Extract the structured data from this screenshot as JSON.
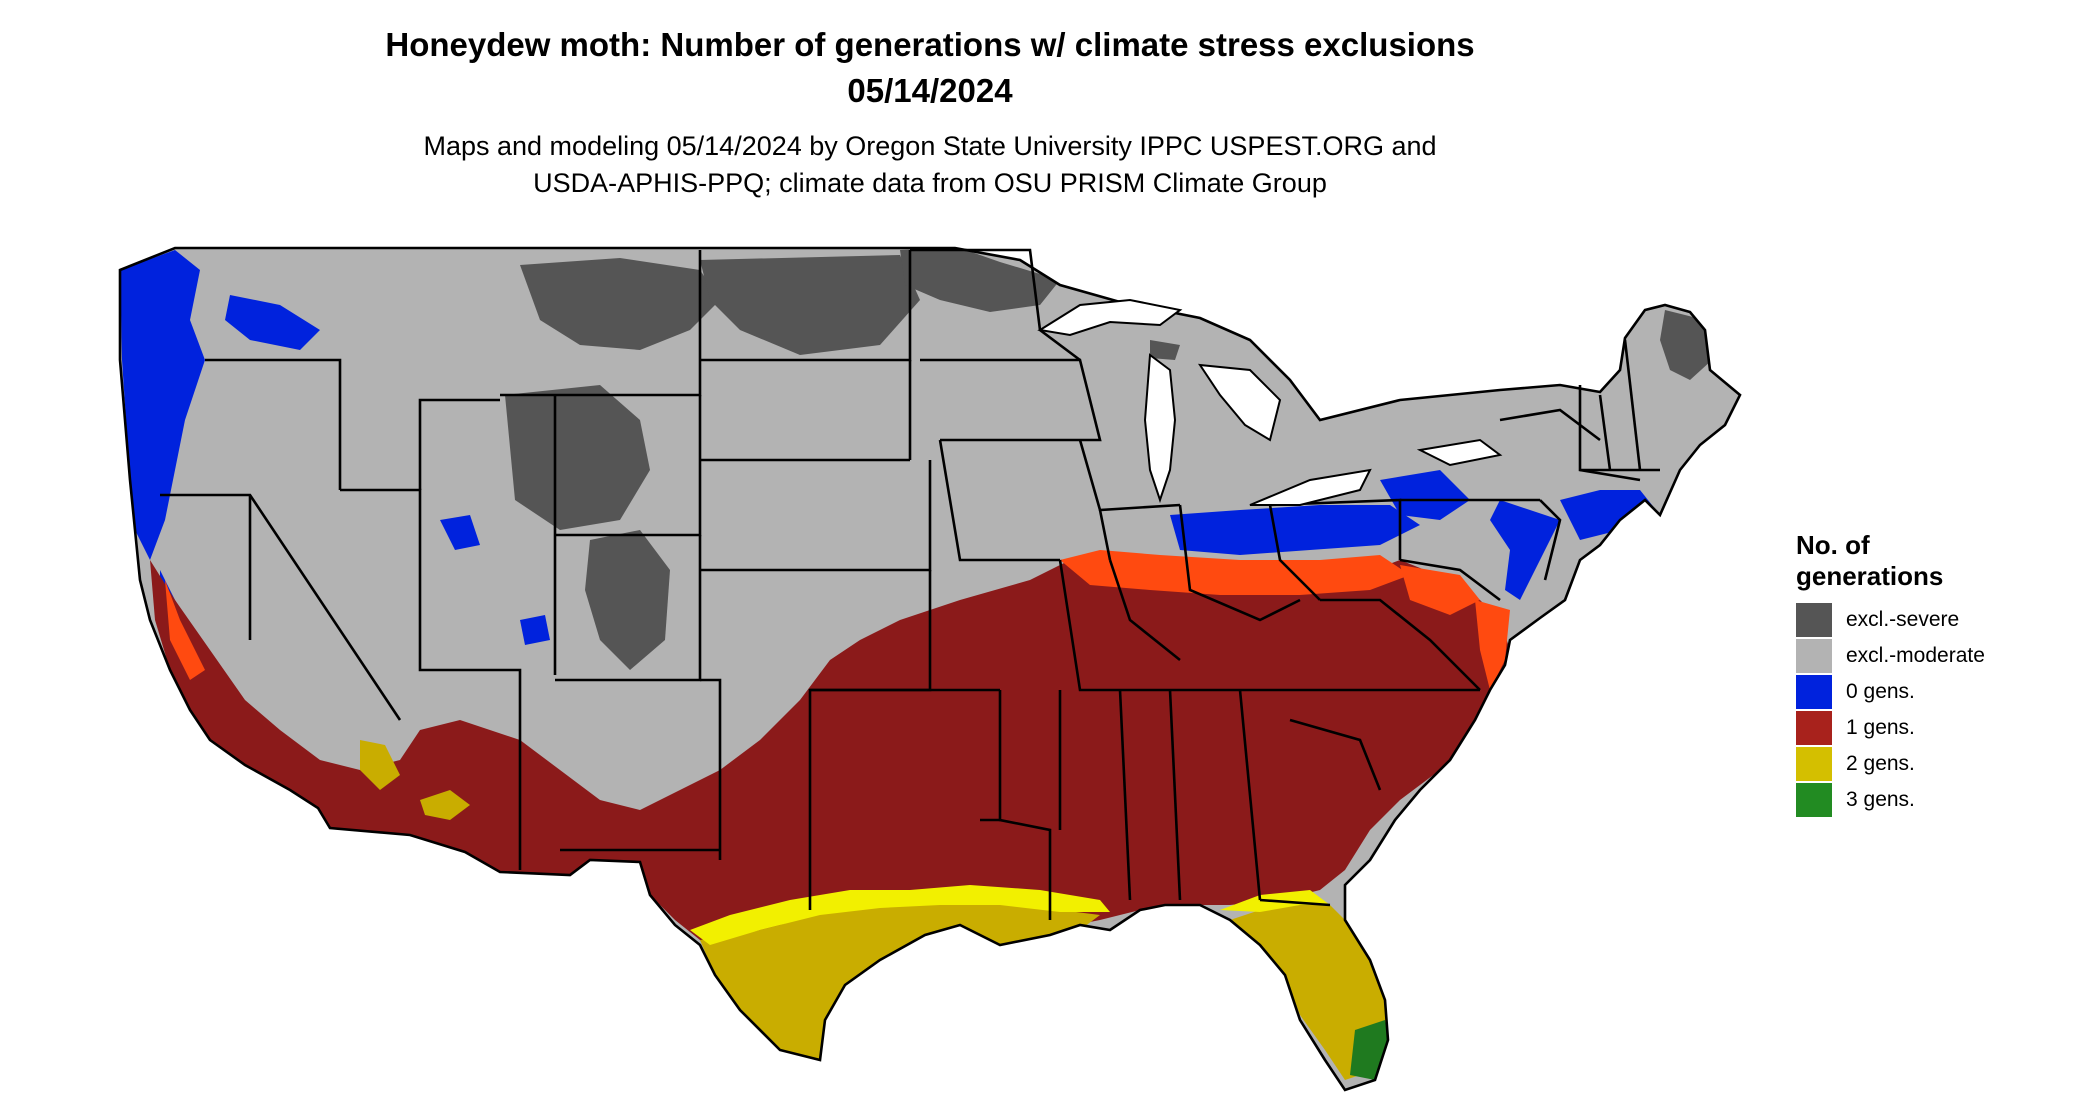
{
  "title": {
    "line1": "Honeydew moth: Number of generations w/ climate stress exclusions",
    "line2": "05/14/2024"
  },
  "subtitle": {
    "line1": "Maps and modeling 05/14/2024 by Oregon State University IPPC USPEST.ORG and",
    "line2": "USDA-APHIS-PPQ; climate data from OSU PRISM Climate Group"
  },
  "legend": {
    "title_line1": "No. of",
    "title_line2": "generations",
    "items": [
      {
        "label": "excl.-severe",
        "color": "#555555"
      },
      {
        "label": "excl.-moderate",
        "color": "#b3b3b3"
      },
      {
        "label": "0 gens.",
        "color": "#0022dd"
      },
      {
        "label": "1 gens.",
        "color": "#a8221c"
      },
      {
        "label": "2 gens.",
        "color": "#d4bf00"
      },
      {
        "label": "3 gens.",
        "color": "#228b22"
      }
    ]
  },
  "map_colors": {
    "excl_severe": "#555555",
    "excl_moderate": "#b3b3b3",
    "zero_gens": "#0022dd",
    "one_gens": "#8b1a1a",
    "one_gens_light": "#ff4a10",
    "two_gens": "#c9ad00",
    "two_gens_light": "#f2f000",
    "three_gens": "#1f7a1f",
    "borders": "#000000"
  }
}
